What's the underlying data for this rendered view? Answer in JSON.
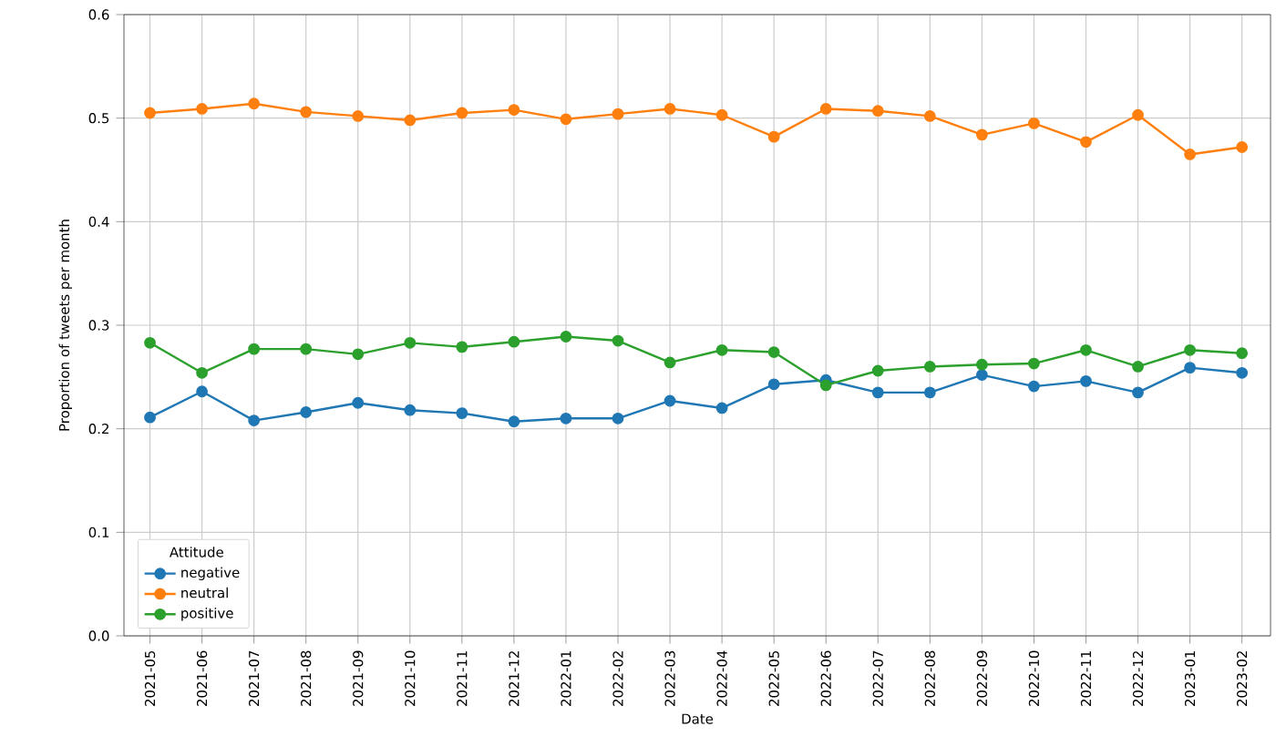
{
  "chart_data": {
    "type": "line",
    "xlabel": "Date",
    "ylabel": "Proportion of tweets per month",
    "legend_title": "Attitude",
    "categories": [
      "2021-05",
      "2021-06",
      "2021-07",
      "2021-08",
      "2021-09",
      "2021-10",
      "2021-11",
      "2021-12",
      "2022-01",
      "2022-02",
      "2022-03",
      "2022-04",
      "2022-05",
      "2022-06",
      "2022-07",
      "2022-08",
      "2022-09",
      "2022-10",
      "2022-11",
      "2022-12",
      "2023-01",
      "2023-02"
    ],
    "series": [
      {
        "name": "negative",
        "color": "#1f77b4",
        "values": [
          0.211,
          0.236,
          0.208,
          0.216,
          0.225,
          0.218,
          0.215,
          0.207,
          0.21,
          0.21,
          0.227,
          0.22,
          0.243,
          0.247,
          0.235,
          0.235,
          0.252,
          0.241,
          0.246,
          0.235,
          0.259,
          0.254
        ]
      },
      {
        "name": "neutral",
        "color": "#ff7f0e",
        "values": [
          0.505,
          0.509,
          0.514,
          0.506,
          0.502,
          0.498,
          0.505,
          0.508,
          0.499,
          0.504,
          0.509,
          0.503,
          0.482,
          0.509,
          0.507,
          0.502,
          0.484,
          0.495,
          0.477,
          0.503,
          0.465,
          0.472
        ]
      },
      {
        "name": "positive",
        "color": "#2ca02c",
        "values": [
          0.283,
          0.254,
          0.277,
          0.277,
          0.272,
          0.283,
          0.279,
          0.284,
          0.289,
          0.285,
          0.264,
          0.276,
          0.274,
          0.242,
          0.256,
          0.26,
          0.262,
          0.263,
          0.276,
          0.26,
          0.276,
          0.273
        ]
      }
    ],
    "ylim": [
      0,
      0.6
    ],
    "yticks": [
      {
        "value": 0,
        "label": "0.0"
      },
      0.1,
      0.2,
      0.3,
      0.4,
      0.5,
      0.6
    ],
    "grid": true,
    "legend": "bottom left",
    "marker": "circle",
    "line_style": "solid"
  }
}
